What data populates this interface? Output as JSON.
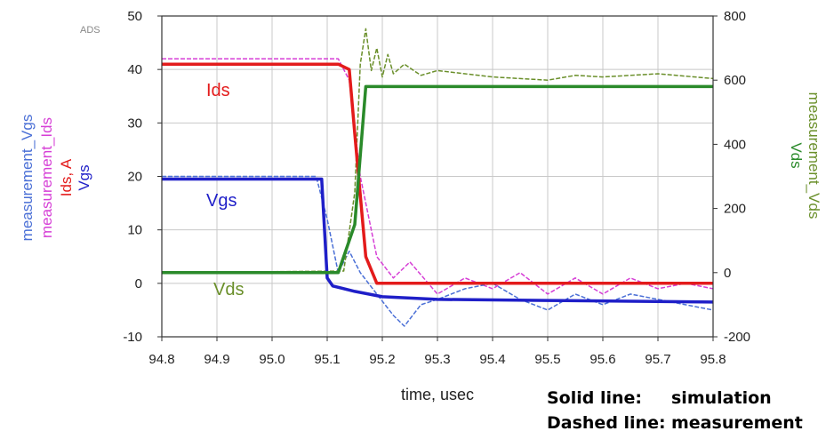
{
  "chart_data": {
    "type": "line",
    "watermark": "ADS",
    "xlabel": "time, usec",
    "x_ticks": [
      "94.8",
      "94.9",
      "95.0",
      "95.1",
      "95.2",
      "95.3",
      "95.4",
      "95.5",
      "95.6",
      "95.7",
      "95.8"
    ],
    "xlim": [
      94.8,
      95.8
    ],
    "left_axis": {
      "ylim": [
        -10,
        50
      ],
      "ticks": [
        "50",
        "40",
        "30",
        "20",
        "10",
        "0",
        "-10"
      ],
      "labels": [
        {
          "text": "measurement_Vgs",
          "color": "#4a6fd6"
        },
        {
          "text": "measurement_Ids",
          "color": "#d63fd6"
        },
        {
          "text": "Ids, A",
          "color": "#e31b1b"
        },
        {
          "text": "Vgs",
          "color": "#1f1fc8"
        }
      ]
    },
    "right_axis": {
      "ylim": [
        -200,
        800
      ],
      "ticks": [
        "800",
        "600",
        "400",
        "200",
        "0",
        "-200"
      ],
      "labels": [
        {
          "text": "measurement_Vds",
          "color": "#6a8f2a"
        },
        {
          "text": "Vds",
          "color": "#2a8a2a"
        }
      ]
    },
    "grid": true,
    "annotations": [
      {
        "text": "Ids",
        "color": "#e31b1b"
      },
      {
        "text": "Vgs",
        "color": "#1f1fc8"
      },
      {
        "text": "Vds",
        "color": "#6a8f2a"
      }
    ],
    "legend": {
      "line1_a": "Solid line:",
      "line1_b": "simulation",
      "line2_a": "Dashed line:",
      "line2_b": "measurement"
    },
    "series": [
      {
        "name": "Ids",
        "style": "solid",
        "axis": "left",
        "color": "#e31b1b",
        "x": [
          94.8,
          95.12,
          95.14,
          95.15,
          95.17,
          95.19,
          95.8
        ],
        "y": [
          41,
          41,
          40,
          28,
          5,
          0,
          0
        ]
      },
      {
        "name": "measurement_Ids",
        "style": "dashed",
        "axis": "left",
        "color": "#d63fd6",
        "x": [
          94.8,
          95.05,
          95.12,
          95.14,
          95.16,
          95.19,
          95.22,
          95.25,
          95.3,
          95.35,
          95.4,
          95.45,
          95.5,
          95.55,
          95.6,
          95.65,
          95.7,
          95.75,
          95.8
        ],
        "y": [
          42,
          42,
          42,
          38,
          20,
          5,
          1,
          4,
          -2,
          1,
          -1,
          2,
          -2,
          1,
          -2,
          1,
          -1,
          0,
          -1
        ]
      },
      {
        "name": "Vgs",
        "style": "solid",
        "axis": "left",
        "color": "#1f1fc8",
        "x": [
          94.8,
          95.09,
          95.1,
          95.11,
          95.15,
          95.2,
          95.3,
          95.5,
          95.8
        ],
        "y": [
          19.5,
          19.5,
          1,
          -0.5,
          -1.5,
          -2.5,
          -3,
          -3.2,
          -3.5
        ]
      },
      {
        "name": "measurement_Vgs",
        "style": "dashed",
        "axis": "left",
        "color": "#4a6fd6",
        "x": [
          94.8,
          95.08,
          95.1,
          95.12,
          95.14,
          95.16,
          95.19,
          95.22,
          95.24,
          95.27,
          95.3,
          95.35,
          95.4,
          95.45,
          95.5,
          95.55,
          95.6,
          95.65,
          95.7,
          95.75,
          95.8
        ],
        "y": [
          20,
          20,
          12,
          2,
          6,
          2,
          -2,
          -6,
          -8,
          -4,
          -3,
          -1,
          0,
          -3,
          -5,
          -2,
          -4,
          -2,
          -3,
          -4,
          -5
        ]
      },
      {
        "name": "Vds",
        "style": "solid",
        "axis": "right",
        "color": "#2a8a2a",
        "x": [
          94.8,
          95.12,
          95.15,
          95.17,
          95.8
        ],
        "y": [
          0,
          0,
          150,
          580,
          580
        ]
      },
      {
        "name": "measurement_Vds",
        "style": "dashed",
        "axis": "right",
        "color": "#6a8f2a",
        "x": [
          94.8,
          95.13,
          95.15,
          95.16,
          95.17,
          95.18,
          95.19,
          95.2,
          95.21,
          95.22,
          95.24,
          95.27,
          95.3,
          95.35,
          95.4,
          95.45,
          95.5,
          95.55,
          95.6,
          95.7,
          95.8
        ],
        "y": [
          0,
          5,
          250,
          650,
          760,
          630,
          700,
          610,
          680,
          620,
          650,
          615,
          630,
          620,
          610,
          605,
          600,
          615,
          610,
          620,
          605
        ]
      }
    ]
  }
}
